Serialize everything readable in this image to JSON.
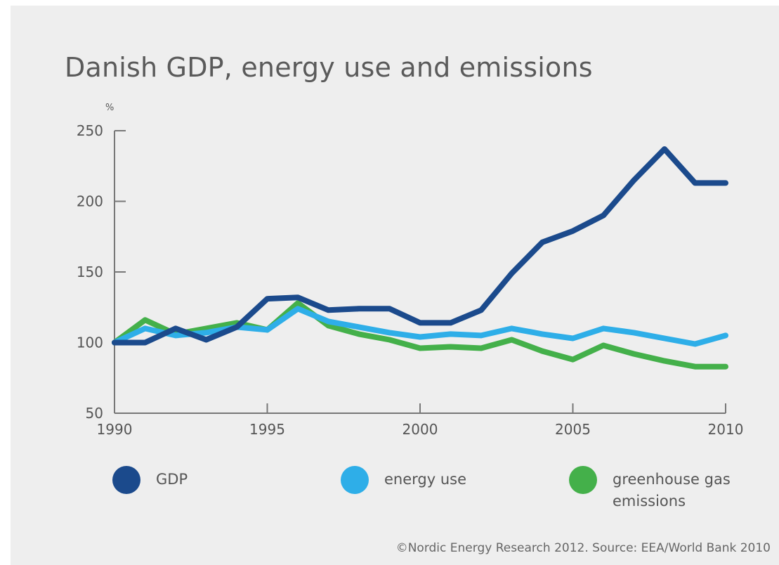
{
  "title": "Danish GDP, energy use and emissions",
  "source": "©Nordic Energy Research 2012. Source: EEA/World Bank 2010",
  "chart_data": {
    "type": "line",
    "title": "Danish GDP, energy use and emissions",
    "ylabel": "%",
    "xlabel": "",
    "x": [
      1990,
      1991,
      1992,
      1993,
      1994,
      1995,
      1996,
      1997,
      1998,
      1999,
      2000,
      2001,
      2002,
      2003,
      2004,
      2005,
      2006,
      2007,
      2008,
      2009,
      2010
    ],
    "xticks": [
      "1990",
      "1995",
      "2000",
      "2005",
      "2010"
    ],
    "yticks": [
      "50",
      "100",
      "150",
      "200",
      "250"
    ],
    "xlim": [
      1990,
      2010
    ],
    "ylim": [
      50,
      250
    ],
    "grid": false,
    "legend_position": "bottom",
    "series": [
      {
        "name": "GDP",
        "color": "#1b4a8c",
        "values": [
          100,
          100,
          110,
          102,
          111,
          131,
          132,
          123,
          124,
          124,
          114,
          114,
          123,
          149,
          171,
          179,
          190,
          215,
          237,
          213,
          213
        ]
      },
      {
        "name": "energy use",
        "color": "#2eaee8",
        "values": [
          100,
          110,
          105,
          107,
          111,
          109,
          124,
          115,
          111,
          107,
          104,
          106,
          105,
          110,
          106,
          103,
          110,
          107,
          103,
          99,
          105
        ]
      },
      {
        "name": "greenhouse gas emissions",
        "color": "#44b04a",
        "values": [
          100,
          116,
          106,
          110,
          114,
          109,
          128,
          112,
          106,
          102,
          96,
          97,
          96,
          102,
          94,
          88,
          98,
          92,
          87,
          83,
          83
        ]
      }
    ]
  }
}
